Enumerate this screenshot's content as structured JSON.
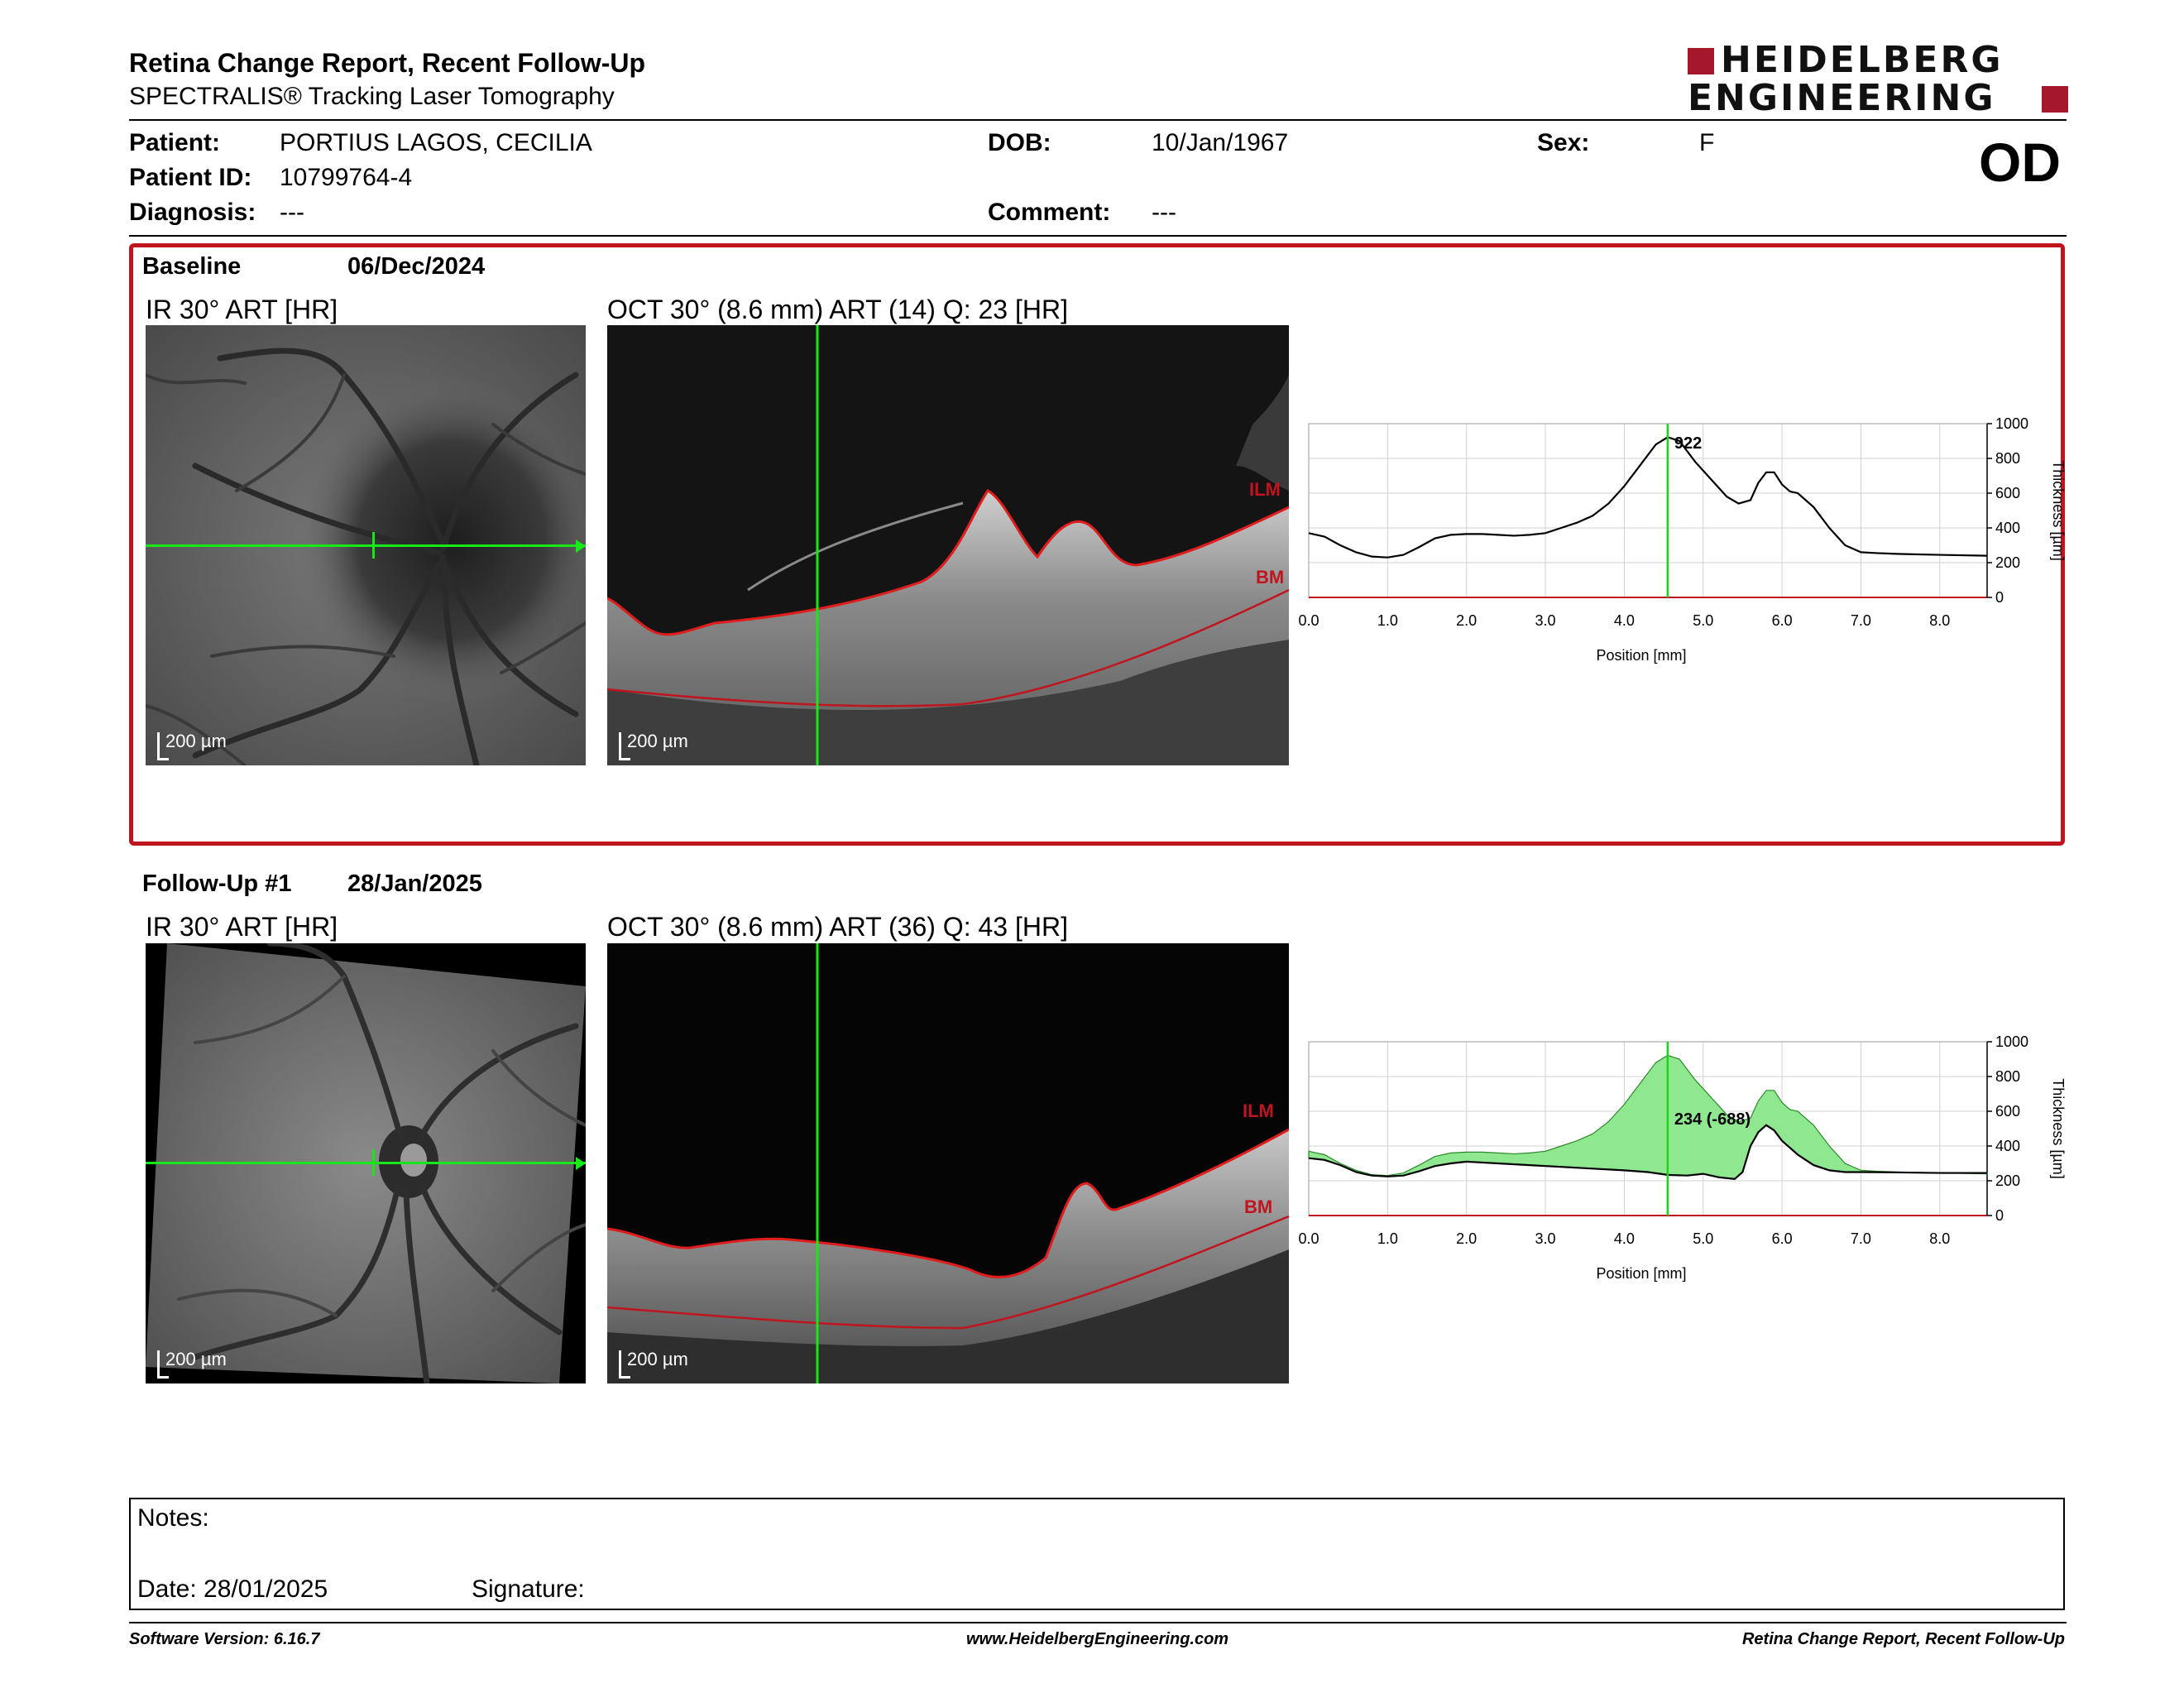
{
  "header": {
    "title": "Retina Change Report, Recent Follow-Up",
    "subtitle": "SPECTRALIS® Tracking Laser Tomography",
    "logo_line1": "HEIDELBERG",
    "logo_line2": "ENGINEERING",
    "brand_color": "#a5182b"
  },
  "patient": {
    "patient_label": "Patient:",
    "patient_value": "PORTIUS LAGOS, CECILIA",
    "id_label": "Patient ID:",
    "id_value": "10799764-4",
    "diagnosis_label": "Diagnosis:",
    "diagnosis_value": "---",
    "dob_label": "DOB:",
    "dob_value": "10/Jan/1967",
    "comment_label": "Comment:",
    "comment_value": "---",
    "sex_label": "Sex:",
    "sex_value": "F",
    "eye": "OD"
  },
  "baseline": {
    "label": "Baseline",
    "date": "06/Dec/2024",
    "ir_label": "IR 30° ART [HR]",
    "oct_label": "OCT 30° (8.6 mm) ART (14) Q: 23 [HR]",
    "scale_label": "200 µm",
    "ilm_label": "ILM",
    "bm_label": "BM",
    "highlight_color": "#c0141e"
  },
  "followup": {
    "label": "Follow-Up #1",
    "date": "28/Jan/2025",
    "ir_label": "IR 30° ART [HR]",
    "oct_label": "OCT 30° (8.6 mm) ART (36) Q: 43 [HR]",
    "scale_label": "200 µm",
    "ilm_label": "ILM",
    "bm_label": "BM"
  },
  "chart_data": [
    {
      "type": "line",
      "xlabel": "Position [mm]",
      "ylabel": "Thickness [µm]",
      "xlim": [
        0,
        8.6
      ],
      "ylim": [
        0,
        1000
      ],
      "xticks": [
        "0.0",
        "1.0",
        "2.0",
        "3.0",
        "4.0",
        "5.0",
        "6.0",
        "7.0",
        "8.0"
      ],
      "yticks": [
        "0",
        "200",
        "400",
        "600",
        "800",
        "1000"
      ],
      "grid": true,
      "cursor_x": 4.55,
      "cursor_label": "922",
      "series": [
        {
          "x": [
            0.0,
            0.2,
            0.4,
            0.6,
            0.8,
            1.0,
            1.2,
            1.4,
            1.6,
            1.8,
            2.0,
            2.2,
            2.4,
            2.6,
            2.8,
            3.0,
            3.2,
            3.4,
            3.6,
            3.8,
            4.0,
            4.2,
            4.4,
            4.55,
            4.7,
            4.9,
            5.1,
            5.3,
            5.45,
            5.6,
            5.7,
            5.8,
            5.9,
            6.0,
            6.1,
            6.2,
            6.4,
            6.6,
            6.8,
            7.0,
            7.2,
            7.5,
            8.0,
            8.6
          ],
          "values": [
            370,
            350,
            300,
            260,
            235,
            230,
            245,
            290,
            340,
            360,
            365,
            365,
            360,
            355,
            360,
            370,
            400,
            430,
            470,
            540,
            640,
            760,
            880,
            922,
            900,
            780,
            680,
            580,
            540,
            560,
            660,
            720,
            720,
            650,
            610,
            600,
            520,
            400,
            300,
            260,
            255,
            250,
            245,
            240
          ]
        }
      ]
    },
    {
      "type": "area",
      "xlabel": "Position [mm]",
      "ylabel": "Thickness [µm]",
      "xlim": [
        0,
        8.6
      ],
      "ylim": [
        0,
        1000
      ],
      "xticks": [
        "0.0",
        "1.0",
        "2.0",
        "3.0",
        "4.0",
        "5.0",
        "6.0",
        "7.0",
        "8.0"
      ],
      "yticks": [
        "0",
        "200",
        "400",
        "600",
        "800",
        "1000"
      ],
      "grid": true,
      "cursor_x": 4.55,
      "cursor_label": "234 (-688)",
      "fill_color": "#8fe88f",
      "series": [
        {
          "x": [
            0.0,
            0.2,
            0.4,
            0.6,
            0.8,
            1.0,
            1.2,
            1.4,
            1.6,
            1.8,
            2.0,
            2.2,
            2.4,
            2.6,
            2.8,
            3.0,
            3.2,
            3.4,
            3.6,
            3.8,
            4.0,
            4.2,
            4.4,
            4.55,
            4.7,
            4.9,
            5.1,
            5.3,
            5.45,
            5.6,
            5.7,
            5.8,
            5.9,
            6.0,
            6.1,
            6.2,
            6.4,
            6.6,
            6.8,
            7.0,
            7.2,
            7.5,
            8.0,
            8.6
          ],
          "values": [
            370,
            350,
            300,
            260,
            235,
            230,
            245,
            290,
            340,
            360,
            365,
            365,
            360,
            355,
            360,
            370,
            400,
            430,
            470,
            540,
            640,
            760,
            880,
            922,
            900,
            780,
            680,
            580,
            540,
            560,
            660,
            720,
            720,
            650,
            610,
            600,
            520,
            400,
            300,
            260,
            255,
            250,
            245,
            240
          ]
        },
        {
          "x": [
            0.0,
            0.2,
            0.4,
            0.6,
            0.8,
            1.0,
            1.2,
            1.4,
            1.6,
            1.8,
            2.0,
            2.4,
            2.8,
            3.2,
            3.6,
            4.0,
            4.3,
            4.55,
            4.8,
            5.0,
            5.2,
            5.4,
            5.5,
            5.6,
            5.7,
            5.8,
            5.9,
            6.0,
            6.2,
            6.4,
            6.6,
            6.8,
            7.0,
            7.5,
            8.0,
            8.6
          ],
          "values": [
            330,
            320,
            290,
            250,
            230,
            225,
            230,
            255,
            285,
            300,
            310,
            300,
            290,
            280,
            270,
            260,
            250,
            234,
            230,
            240,
            220,
            210,
            250,
            400,
            480,
            520,
            490,
            430,
            350,
            290,
            260,
            250,
            250,
            248,
            245,
            245
          ]
        }
      ]
    }
  ],
  "notes": {
    "notes_label": "Notes:",
    "date_label": "Date: 28/01/2025",
    "signature_label": "Signature:"
  },
  "footer": {
    "version": "Software Version: 6.16.7",
    "website": "www.HeidelbergEngineering.com",
    "report": "Retina Change Report, Recent Follow-Up"
  }
}
